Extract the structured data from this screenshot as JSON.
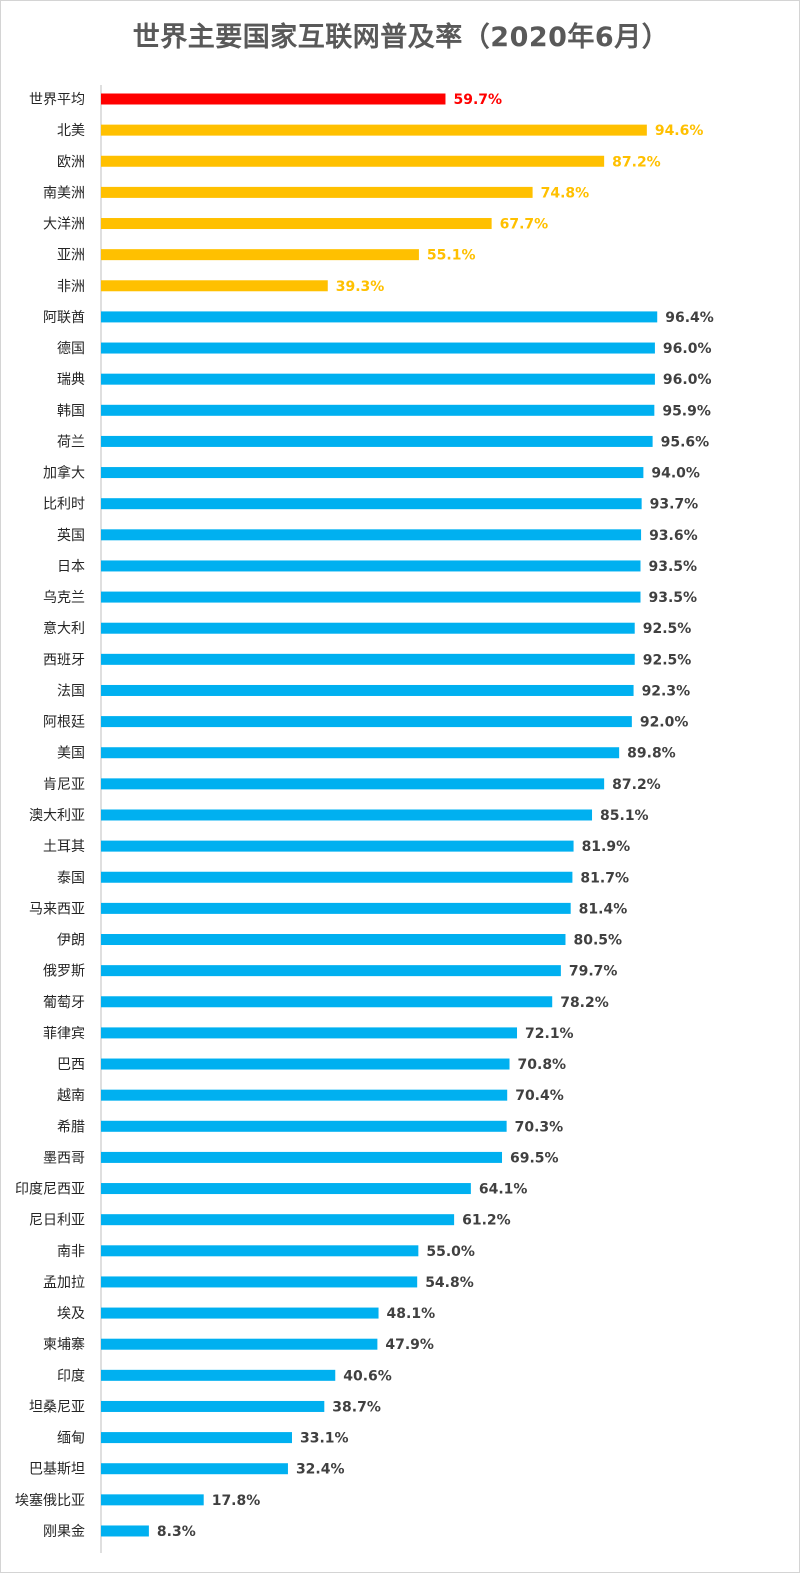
{
  "chart_data": {
    "type": "bar",
    "orientation": "horizontal",
    "title": "世界主要国家互联网普及率（2020年6月）",
    "xlim": [
      0,
      100
    ],
    "grid": false,
    "legend": "none",
    "value_suffix": "%",
    "colors": {
      "world": "#ff0000",
      "continent": "#ffc000",
      "country": "#00b0f0",
      "country_label": "#404040",
      "axis": "#bfbfbf"
    },
    "bars": [
      {
        "label": "世界平均",
        "value": 59.7,
        "group": "world"
      },
      {
        "label": "北美",
        "value": 94.6,
        "group": "continent"
      },
      {
        "label": "欧洲",
        "value": 87.2,
        "group": "continent"
      },
      {
        "label": "南美洲",
        "value": 74.8,
        "group": "continent"
      },
      {
        "label": "大洋洲",
        "value": 67.7,
        "group": "continent"
      },
      {
        "label": "亚洲",
        "value": 55.1,
        "group": "continent"
      },
      {
        "label": "非洲",
        "value": 39.3,
        "group": "continent"
      },
      {
        "label": "阿联酋",
        "value": 96.4,
        "group": "country"
      },
      {
        "label": "德国",
        "value": 96.0,
        "group": "country"
      },
      {
        "label": "瑞典",
        "value": 96.0,
        "group": "country"
      },
      {
        "label": "韩国",
        "value": 95.9,
        "group": "country"
      },
      {
        "label": "荷兰",
        "value": 95.6,
        "group": "country"
      },
      {
        "label": "加拿大",
        "value": 94.0,
        "group": "country"
      },
      {
        "label": "比利时",
        "value": 93.7,
        "group": "country"
      },
      {
        "label": "英国",
        "value": 93.6,
        "group": "country"
      },
      {
        "label": "日本",
        "value": 93.5,
        "group": "country"
      },
      {
        "label": "乌克兰",
        "value": 93.5,
        "group": "country"
      },
      {
        "label": "意大利",
        "value": 92.5,
        "group": "country"
      },
      {
        "label": "西班牙",
        "value": 92.5,
        "group": "country"
      },
      {
        "label": "法国",
        "value": 92.3,
        "group": "country"
      },
      {
        "label": "阿根廷",
        "value": 92.0,
        "group": "country"
      },
      {
        "label": "美国",
        "value": 89.8,
        "group": "country"
      },
      {
        "label": "肯尼亚",
        "value": 87.2,
        "group": "country"
      },
      {
        "label": "澳大利亚",
        "value": 85.1,
        "group": "country"
      },
      {
        "label": "土耳其",
        "value": 81.9,
        "group": "country"
      },
      {
        "label": "泰国",
        "value": 81.7,
        "group": "country"
      },
      {
        "label": "马来西亚",
        "value": 81.4,
        "group": "country"
      },
      {
        "label": "伊朗",
        "value": 80.5,
        "group": "country"
      },
      {
        "label": "俄罗斯",
        "value": 79.7,
        "group": "country"
      },
      {
        "label": "葡萄牙",
        "value": 78.2,
        "group": "country"
      },
      {
        "label": "菲律宾",
        "value": 72.1,
        "group": "country"
      },
      {
        "label": "巴西",
        "value": 70.8,
        "group": "country"
      },
      {
        "label": "越南",
        "value": 70.4,
        "group": "country"
      },
      {
        "label": "希腊",
        "value": 70.3,
        "group": "country"
      },
      {
        "label": "墨西哥",
        "value": 69.5,
        "group": "country"
      },
      {
        "label": "印度尼西亚",
        "value": 64.1,
        "group": "country"
      },
      {
        "label": "尼日利亚",
        "value": 61.2,
        "group": "country"
      },
      {
        "label": "南非",
        "value": 55.0,
        "group": "country"
      },
      {
        "label": "孟加拉",
        "value": 54.8,
        "group": "country"
      },
      {
        "label": "埃及",
        "value": 48.1,
        "group": "country"
      },
      {
        "label": "柬埔寨",
        "value": 47.9,
        "group": "country"
      },
      {
        "label": "印度",
        "value": 40.6,
        "group": "country"
      },
      {
        "label": "坦桑尼亚",
        "value": 38.7,
        "group": "country"
      },
      {
        "label": "缅甸",
        "value": 33.1,
        "group": "country"
      },
      {
        "label": "巴基斯坦",
        "value": 32.4,
        "group": "country"
      },
      {
        "label": "埃塞俄比亚",
        "value": 17.8,
        "group": "country"
      },
      {
        "label": "刚果金",
        "value": 8.3,
        "group": "country"
      }
    ]
  }
}
